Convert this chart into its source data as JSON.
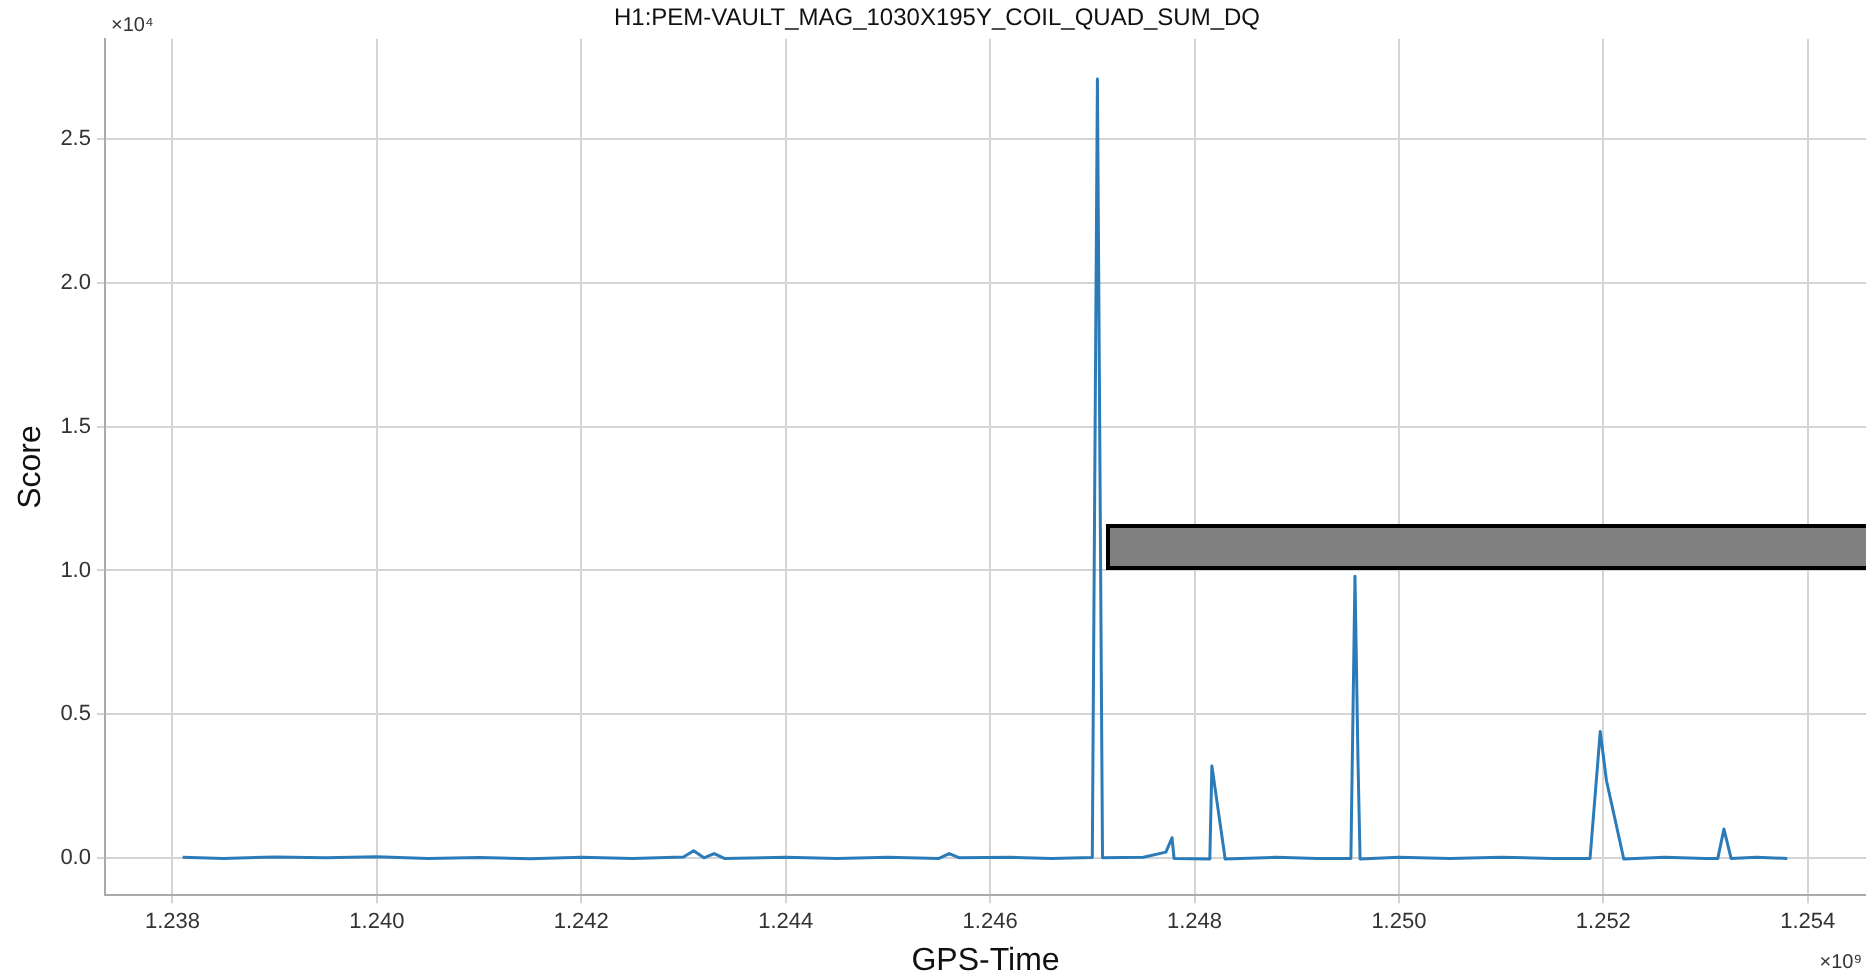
{
  "chart_data": {
    "type": "line",
    "title": "H1:PEM-VAULT_MAG_1030X195Y_COIL_QUAD_SUM_DQ",
    "xlabel": "GPS-Time",
    "ylabel": "Score",
    "annotations": [
      "×10⁴",
      "×10⁹"
    ],
    "color": "#2b7bb9",
    "marker": "none",
    "grid": true,
    "x": [
      1.2381,
      1.2385,
      1.239,
      1.2395,
      1.24,
      1.2405,
      1.241,
      1.2415,
      1.242,
      1.2425,
      1.243,
      1.2431,
      1.2432,
      1.2433,
      1.2434,
      1.244,
      1.2445,
      1.245,
      1.2455,
      1.2456,
      1.2457,
      1.2462,
      1.2466,
      1.247,
      1.24705,
      1.2471,
      1.2475,
      1.24772,
      1.24778,
      1.2478,
      1.24815,
      1.24817,
      1.2483,
      1.2488,
      1.2492,
      1.24953,
      1.24957,
      1.2496,
      1.24962,
      1.25,
      1.2505,
      1.251,
      1.2515,
      1.25187,
      1.25197,
      1.25203,
      1.2522,
      1.2526,
      1.253,
      1.25312,
      1.25318,
      1.25325,
      1.2535,
      1.2538
    ],
    "values": [
      0.002,
      -0.002,
      0.003,
      0,
      0.004,
      -0.002,
      0.001,
      -0.003,
      0.002,
      -0.002,
      0.003,
      0.025,
      0,
      0.015,
      -0.002,
      0.002,
      -0.002,
      0.002,
      -0.002,
      0.015,
      0,
      0.002,
      -0.002,
      0.001,
      2.71,
      0,
      0.002,
      0.02,
      0.07,
      -0.002,
      -0.004,
      0.32,
      -0.004,
      0.002,
      -0.002,
      -0.002,
      0.98,
      0.33,
      -0.004,
      0.002,
      -0.002,
      0.002,
      -0.002,
      -0.002,
      0.44,
      0.27,
      -0.004,
      0.002,
      -0.002,
      -0.002,
      0.1,
      -0.002,
      0.002,
      -0.002
    ],
    "xlim": [
      1.23734,
      1.25457
    ],
    "ylim": [
      -0.13,
      2.85
    ],
    "xticks": [
      1.238,
      {
        "value": 1.24,
        "label": "1.240"
      },
      1.242,
      1.244,
      1.246,
      1.248,
      {
        "value": 1.25,
        "label": "1.250"
      },
      1.252,
      1.254
    ],
    "yticks": [
      {
        "value": 0,
        "label": "0.0"
      },
      0.5,
      {
        "value": 1,
        "label": "1.0"
      },
      1.5,
      {
        "value": 2,
        "label": "2.0"
      },
      2.5
    ]
  }
}
